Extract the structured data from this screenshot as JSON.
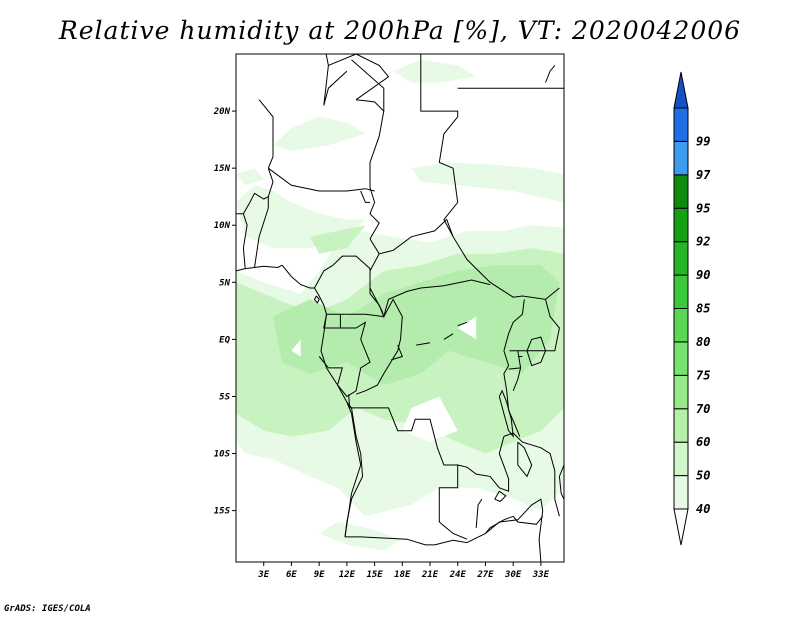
{
  "title": "Relative humidity at 200hPa [%], VT: 2020042006",
  "credit": "GrADS: IGES/COLA",
  "map": {
    "lon_range": [
      0,
      35.5
    ],
    "lat_range": [
      -19.5,
      25
    ],
    "lat_ticks": [
      {
        "value": 20,
        "label": "20N"
      },
      {
        "value": 15,
        "label": "15N"
      },
      {
        "value": 10,
        "label": "10N"
      },
      {
        "value": 5,
        "label": "5N"
      },
      {
        "value": 0,
        "label": "EQ"
      },
      {
        "value": -5,
        "label": "5S"
      },
      {
        "value": -10,
        "label": "10S"
      },
      {
        "value": -15,
        "label": "15S"
      }
    ],
    "lon_ticks": [
      {
        "value": 3,
        "label": "3E"
      },
      {
        "value": 6,
        "label": "6E"
      },
      {
        "value": 9,
        "label": "9E"
      },
      {
        "value": 12,
        "label": "12E"
      },
      {
        "value": 15,
        "label": "15E"
      },
      {
        "value": 18,
        "label": "18E"
      },
      {
        "value": 21,
        "label": "21E"
      },
      {
        "value": 24,
        "label": "24E"
      },
      {
        "value": 27,
        "label": "27E"
      },
      {
        "value": 30,
        "label": "30E"
      },
      {
        "value": 33,
        "label": "33E"
      }
    ],
    "colors": {
      "low": "#e6fae6",
      "mid": "#c8f2c0",
      "high": "#b4ecae",
      "border": "#000000"
    }
  },
  "colorbar": {
    "levels": [
      {
        "color": "#ffffff",
        "label": ""
      },
      {
        "color": "#e6fae6",
        "label": "40"
      },
      {
        "color": "#d0f6ca",
        "label": "50"
      },
      {
        "color": "#b4f0aa",
        "label": "60"
      },
      {
        "color": "#96ea8a",
        "label": "70"
      },
      {
        "color": "#78e26e",
        "label": "75"
      },
      {
        "color": "#5ad854",
        "label": "80"
      },
      {
        "color": "#3cc83c",
        "label": "85"
      },
      {
        "color": "#28b428",
        "label": "90"
      },
      {
        "color": "#16a016",
        "label": "92"
      },
      {
        "color": "#0e8a0e",
        "label": "95"
      },
      {
        "color": "#3c9cf0",
        "label": "97"
      },
      {
        "color": "#1e6ee6",
        "label": "99"
      },
      {
        "color": "#1450c8",
        "label": ""
      }
    ]
  }
}
